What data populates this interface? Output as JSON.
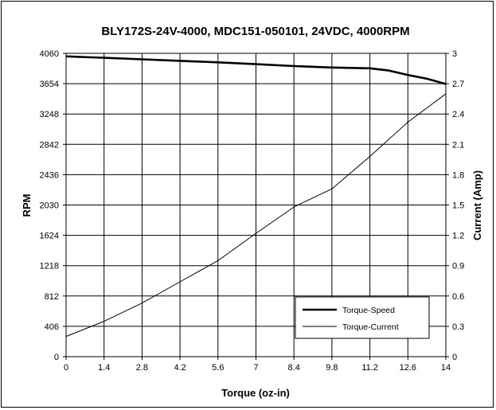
{
  "chart_data": {
    "type": "line",
    "title": "BLY172S-24V-4000,  MDC151-050101,  24VDC,  4000RPM",
    "xlabel": "Torque (oz-in)",
    "ylabel": "RPM",
    "y2label": "Current (Amp)",
    "xlim": [
      0,
      14
    ],
    "ylim": [
      0,
      4060
    ],
    "y2lim": [
      0,
      3
    ],
    "x_ticks": [
      "0",
      "1.4",
      "2.8",
      "4.2",
      "5.6",
      "7",
      "8.4",
      "9.8",
      "11.2",
      "12.6",
      "14"
    ],
    "y_ticks": [
      "0",
      "406",
      "812",
      "1218",
      "1624",
      "2030",
      "2436",
      "2842",
      "3248",
      "3654",
      "4060"
    ],
    "y2_ticks": [
      "0",
      "0.3",
      "0.6",
      "0.9",
      "1.2",
      "1.5",
      "1.8",
      "2.1",
      "2.4",
      "2.7",
      "3"
    ],
    "grid": true,
    "legend_position": "bottom-right",
    "series": [
      {
        "name": "Torque-Speed",
        "axis": "left",
        "color": "#000000",
        "stroke": "thick",
        "x": [
          0,
          1.4,
          2.8,
          4.2,
          5.6,
          7,
          8.4,
          9.8,
          11.2,
          11.9,
          12.6,
          13.3,
          14
        ],
        "y": [
          4020,
          4000,
          3980,
          3960,
          3940,
          3915,
          3890,
          3870,
          3860,
          3830,
          3770,
          3720,
          3650
        ]
      },
      {
        "name": "Torque-Current",
        "axis": "right",
        "color": "#000000",
        "stroke": "thin",
        "x": [
          0,
          1.4,
          2.8,
          4.2,
          5.6,
          7,
          8.4,
          9.8,
          11.2,
          12.6,
          14
        ],
        "y": [
          0.2,
          0.35,
          0.53,
          0.74,
          0.95,
          1.22,
          1.48,
          1.66,
          1.98,
          2.32,
          2.6
        ]
      }
    ]
  }
}
